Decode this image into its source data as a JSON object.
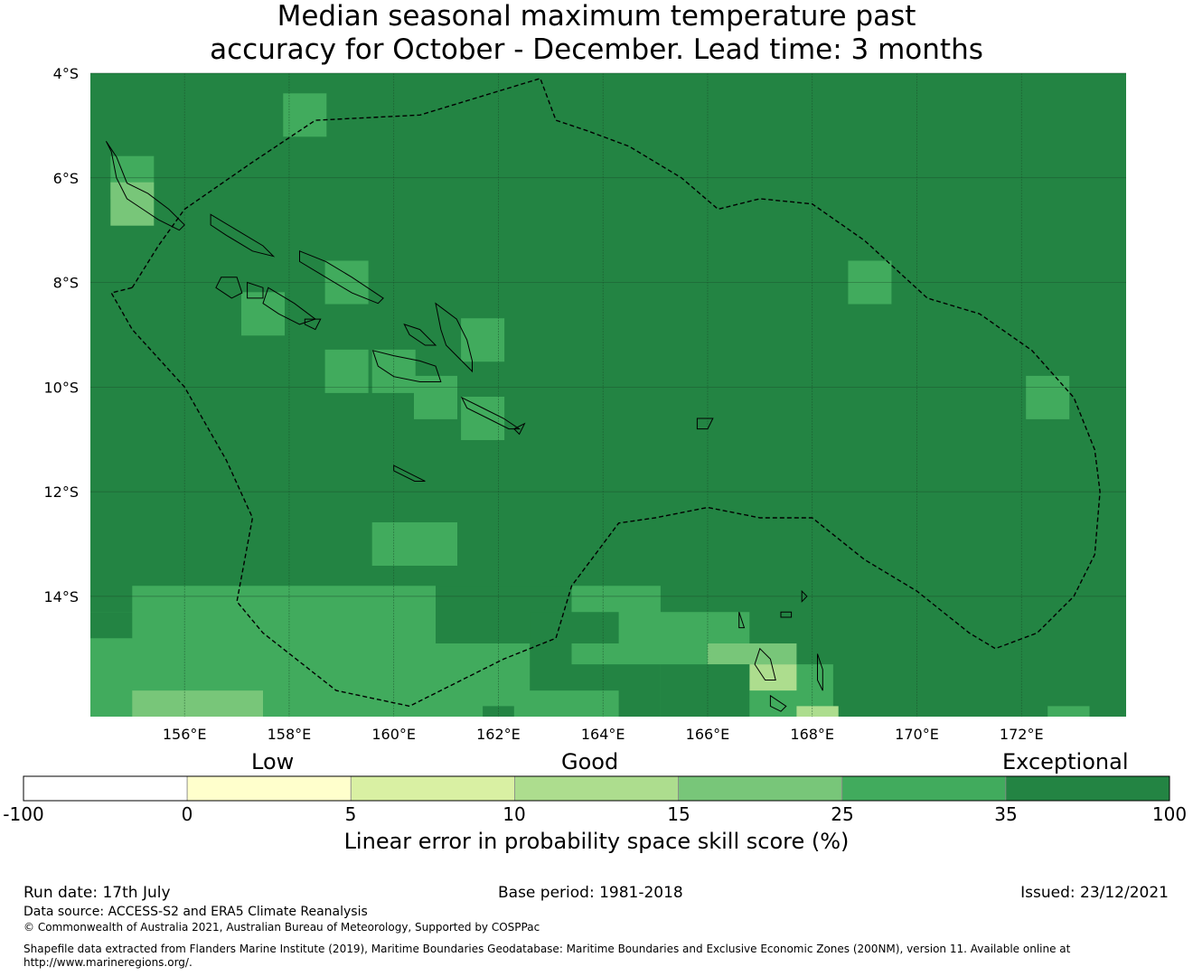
{
  "title": {
    "line1": "Median seasonal maximum temperature past",
    "line2": "accuracy for October - December. Lead time: 3 months"
  },
  "map": {
    "lon_range": [
      154.2,
      174.0
    ],
    "lat_range": [
      -16.3,
      -4.0
    ],
    "lat_ticks": [
      {
        "value": -4,
        "label": "4°S"
      },
      {
        "value": -6,
        "label": "6°S"
      },
      {
        "value": -8,
        "label": "8°S"
      },
      {
        "value": -10,
        "label": "10°S"
      },
      {
        "value": -12,
        "label": "12°S"
      },
      {
        "value": -14,
        "label": "14°S"
      }
    ],
    "lon_ticks": [
      {
        "value": 156,
        "label": "156°E"
      },
      {
        "value": 158,
        "label": "158°E"
      },
      {
        "value": 160,
        "label": "160°E"
      },
      {
        "value": 162,
        "label": "162°E"
      },
      {
        "value": 164,
        "label": "164°E"
      },
      {
        "value": 166,
        "label": "166°E"
      },
      {
        "value": 168,
        "label": "168°E"
      },
      {
        "value": 170,
        "label": "170°E"
      },
      {
        "value": 172,
        "label": "172°E"
      }
    ],
    "grid": true,
    "background_class": 6,
    "cell_size_deg": 0.83,
    "cells": [
      {
        "lon": 158.3,
        "lat": -4.8,
        "class": 5
      },
      {
        "lon": 155.0,
        "lat": -6.0,
        "class": 5
      },
      {
        "lon": 155.0,
        "lat": -6.5,
        "class": 4
      },
      {
        "lon": 159.1,
        "lat": -8.0,
        "class": 5
      },
      {
        "lon": 157.5,
        "lat": -8.6,
        "class": 5
      },
      {
        "lon": 161.7,
        "lat": -9.1,
        "class": 5
      },
      {
        "lon": 159.1,
        "lat": -9.7,
        "class": 5
      },
      {
        "lon": 160.0,
        "lat": -9.7,
        "class": 5
      },
      {
        "lon": 160.8,
        "lat": -10.2,
        "class": 5
      },
      {
        "lon": 161.7,
        "lat": -10.6,
        "class": 5
      },
      {
        "lon": 169.1,
        "lat": -8.0,
        "class": 5
      },
      {
        "lon": 172.5,
        "lat": -10.2,
        "class": 5
      },
      {
        "lon": 160.0,
        "lat": -13.0,
        "class": 5
      },
      {
        "lon": 160.8,
        "lat": -13.0,
        "class": 5
      }
    ],
    "regions": [
      {
        "class": 5,
        "polygon": [
          [
            155.0,
            -13.8
          ],
          [
            155.0,
            -14.3
          ],
          [
            154.2,
            -14.3
          ],
          [
            154.2,
            -16.3
          ],
          [
            168.4,
            -16.3
          ],
          [
            168.4,
            -15.3
          ],
          [
            166.8,
            -15.3
          ],
          [
            166.8,
            -14.3
          ],
          [
            165.1,
            -14.3
          ],
          [
            165.1,
            -13.8
          ],
          [
            163.4,
            -13.8
          ],
          [
            163.4,
            -14.3
          ],
          [
            164.3,
            -14.3
          ],
          [
            164.3,
            -14.9
          ],
          [
            163.4,
            -14.9
          ],
          [
            163.4,
            -15.3
          ],
          [
            165.1,
            -15.3
          ],
          [
            165.1,
            -16.3
          ],
          [
            164.3,
            -16.3
          ],
          [
            164.3,
            -15.8
          ],
          [
            162.6,
            -15.8
          ],
          [
            162.6,
            -14.9
          ],
          [
            160.8,
            -14.9
          ],
          [
            160.8,
            -13.8
          ],
          [
            160.0,
            -13.8
          ],
          [
            155.8,
            -13.8
          ]
        ]
      },
      {
        "class": 6,
        "polygon": [
          [
            160.8,
            -13.8
          ],
          [
            160.8,
            -14.9
          ],
          [
            162.6,
            -14.9
          ],
          [
            162.6,
            -14.3
          ],
          [
            163.4,
            -14.3
          ],
          [
            163.4,
            -13.8
          ],
          [
            165.1,
            -13.8
          ],
          [
            165.1,
            -13.8
          ],
          [
            160.8,
            -13.8
          ]
        ]
      },
      {
        "class": 4,
        "polygon": [
          [
            155.0,
            -15.8
          ],
          [
            157.5,
            -15.8
          ],
          [
            157.5,
            -16.3
          ],
          [
            155.0,
            -16.3
          ]
        ]
      },
      {
        "class": 4,
        "polygon": [
          [
            166.0,
            -14.9
          ],
          [
            167.7,
            -14.9
          ],
          [
            167.7,
            -15.3
          ],
          [
            166.0,
            -15.3
          ]
        ]
      },
      {
        "class": 3,
        "polygon": [
          [
            166.8,
            -15.3
          ],
          [
            167.7,
            -15.3
          ],
          [
            167.7,
            -15.8
          ],
          [
            166.8,
            -15.8
          ]
        ]
      },
      {
        "class": 3,
        "polygon": [
          [
            167.7,
            -16.1
          ],
          [
            168.5,
            -16.1
          ],
          [
            168.5,
            -16.3
          ],
          [
            167.7,
            -16.3
          ]
        ]
      },
      {
        "class": 6,
        "polygon": [
          [
            154.2,
            -14.3
          ],
          [
            155.0,
            -14.3
          ],
          [
            155.0,
            -14.8
          ],
          [
            154.2,
            -14.8
          ]
        ]
      },
      {
        "class": 6,
        "polygon": [
          [
            165.1,
            -15.3
          ],
          [
            166.8,
            -15.3
          ],
          [
            166.8,
            -16.3
          ],
          [
            165.1,
            -16.3
          ]
        ]
      },
      {
        "class": 6,
        "polygon": [
          [
            161.7,
            -16.1
          ],
          [
            162.3,
            -16.1
          ],
          [
            162.3,
            -16.3
          ],
          [
            161.7,
            -16.3
          ]
        ]
      },
      {
        "class": 5,
        "polygon": [
          [
            172.5,
            -16.1
          ],
          [
            173.3,
            -16.1
          ],
          [
            173.3,
            -16.3
          ],
          [
            172.5,
            -16.3
          ]
        ]
      }
    ],
    "eez_boundary": [
      [
        155.0,
        -8.1
      ],
      [
        155.5,
        -7.3
      ],
      [
        156.0,
        -6.6
      ],
      [
        157.3,
        -5.7
      ],
      [
        158.5,
        -4.9
      ],
      [
        160.5,
        -4.8
      ],
      [
        162.8,
        -4.1
      ],
      [
        163.1,
        -4.9
      ],
      [
        163.7,
        -5.1
      ],
      [
        164.5,
        -5.4
      ],
      [
        165.5,
        -6.0
      ],
      [
        166.2,
        -6.6
      ],
      [
        167.0,
        -6.4
      ],
      [
        168.0,
        -6.5
      ],
      [
        169.0,
        -7.2
      ],
      [
        170.2,
        -8.3
      ],
      [
        171.2,
        -8.6
      ],
      [
        172.2,
        -9.3
      ],
      [
        173.0,
        -10.2
      ],
      [
        173.4,
        -11.2
      ],
      [
        173.5,
        -12.0
      ],
      [
        173.4,
        -13.2
      ],
      [
        173.0,
        -14.0
      ],
      [
        172.3,
        -14.7
      ],
      [
        171.5,
        -15.0
      ],
      [
        171.0,
        -14.7
      ],
      [
        170.0,
        -13.9
      ],
      [
        169.0,
        -13.3
      ],
      [
        168.0,
        -12.5
      ],
      [
        167.0,
        -12.5
      ],
      [
        166.0,
        -12.3
      ],
      [
        165.0,
        -12.5
      ],
      [
        164.3,
        -12.6
      ],
      [
        163.4,
        -13.8
      ],
      [
        163.1,
        -14.8
      ],
      [
        162.1,
        -15.2
      ],
      [
        160.3,
        -16.1
      ],
      [
        158.9,
        -15.8
      ],
      [
        157.5,
        -14.7
      ],
      [
        157.0,
        -14.1
      ],
      [
        157.3,
        -12.5
      ],
      [
        156.8,
        -11.4
      ],
      [
        156.0,
        -10.0
      ],
      [
        155.0,
        -8.9
      ],
      [
        154.6,
        -8.2
      ],
      [
        155.0,
        -8.1
      ]
    ],
    "land": [
      [
        [
          154.5,
          -5.3
        ],
        [
          154.7,
          -5.6
        ],
        [
          154.9,
          -6.1
        ],
        [
          155.3,
          -6.3
        ],
        [
          155.7,
          -6.6
        ],
        [
          156.0,
          -6.9
        ],
        [
          155.9,
          -7.0
        ],
        [
          155.5,
          -6.8
        ],
        [
          155.2,
          -6.6
        ],
        [
          154.9,
          -6.4
        ],
        [
          154.7,
          -6.0
        ],
        [
          154.6,
          -5.5
        ]
      ],
      [
        [
          156.5,
          -6.7
        ],
        [
          157.0,
          -7.0
        ],
        [
          157.5,
          -7.3
        ],
        [
          157.7,
          -7.5
        ],
        [
          157.3,
          -7.4
        ],
        [
          156.8,
          -7.1
        ],
        [
          156.5,
          -6.9
        ]
      ],
      [
        [
          156.7,
          -7.9
        ],
        [
          157.0,
          -7.9
        ],
        [
          157.1,
          -8.2
        ],
        [
          156.9,
          -8.3
        ],
        [
          156.6,
          -8.1
        ]
      ],
      [
        [
          157.2,
          -8.0
        ],
        [
          157.5,
          -8.1
        ],
        [
          157.5,
          -8.3
        ],
        [
          157.2,
          -8.3
        ]
      ],
      [
        [
          157.6,
          -8.1
        ],
        [
          158.1,
          -8.4
        ],
        [
          158.5,
          -8.7
        ],
        [
          158.2,
          -8.8
        ],
        [
          157.8,
          -8.6
        ],
        [
          157.5,
          -8.4
        ]
      ],
      [
        [
          158.3,
          -8.7
        ],
        [
          158.6,
          -8.7
        ],
        [
          158.5,
          -8.9
        ],
        [
          158.3,
          -8.8
        ]
      ],
      [
        [
          158.2,
          -7.4
        ],
        [
          158.7,
          -7.6
        ],
        [
          159.2,
          -7.9
        ],
        [
          159.8,
          -8.3
        ],
        [
          159.7,
          -8.4
        ],
        [
          159.2,
          -8.2
        ],
        [
          158.7,
          -7.9
        ],
        [
          158.2,
          -7.6
        ]
      ],
      [
        [
          160.2,
          -8.8
        ],
        [
          160.5,
          -8.9
        ],
        [
          160.8,
          -9.2
        ],
        [
          160.6,
          -9.2
        ],
        [
          160.3,
          -9.0
        ]
      ],
      [
        [
          159.6,
          -9.3
        ],
        [
          160.0,
          -9.4
        ],
        [
          160.5,
          -9.5
        ],
        [
          160.8,
          -9.6
        ],
        [
          160.9,
          -9.9
        ],
        [
          160.5,
          -9.9
        ],
        [
          160.0,
          -9.8
        ],
        [
          159.7,
          -9.6
        ]
      ],
      [
        [
          160.8,
          -8.4
        ],
        [
          161.2,
          -8.7
        ],
        [
          161.4,
          -9.1
        ],
        [
          161.5,
          -9.5
        ],
        [
          161.5,
          -9.7
        ],
        [
          161.3,
          -9.5
        ],
        [
          161.0,
          -9.2
        ],
        [
          160.9,
          -8.9
        ]
      ],
      [
        [
          161.3,
          -10.2
        ],
        [
          161.7,
          -10.4
        ],
        [
          162.1,
          -10.6
        ],
        [
          162.4,
          -10.8
        ],
        [
          162.2,
          -10.8
        ],
        [
          161.8,
          -10.6
        ],
        [
          161.4,
          -10.4
        ]
      ],
      [
        [
          162.3,
          -10.8
        ],
        [
          162.5,
          -10.7
        ],
        [
          162.4,
          -10.9
        ]
      ],
      [
        [
          160.0,
          -11.5
        ],
        [
          160.4,
          -11.7
        ],
        [
          160.6,
          -11.8
        ],
        [
          160.4,
          -11.8
        ],
        [
          160.0,
          -11.6
        ]
      ],
      [
        [
          165.8,
          -10.6
        ],
        [
          166.1,
          -10.6
        ],
        [
          166.0,
          -10.8
        ],
        [
          165.8,
          -10.8
        ]
      ],
      [
        [
          167.0,
          -15.0
        ],
        [
          167.2,
          -15.2
        ],
        [
          167.3,
          -15.6
        ],
        [
          167.1,
          -15.6
        ],
        [
          166.9,
          -15.3
        ]
      ],
      [
        [
          168.1,
          -15.1
        ],
        [
          168.2,
          -15.4
        ],
        [
          168.2,
          -15.8
        ],
        [
          168.1,
          -15.6
        ]
      ],
      [
        [
          167.2,
          -15.9
        ],
        [
          167.5,
          -16.1
        ],
        [
          167.4,
          -16.2
        ],
        [
          167.2,
          -16.1
        ]
      ],
      [
        [
          166.6,
          -14.3
        ],
        [
          166.7,
          -14.6
        ],
        [
          166.6,
          -14.6
        ]
      ],
      [
        [
          167.4,
          -14.3
        ],
        [
          167.6,
          -14.3
        ],
        [
          167.6,
          -14.4
        ],
        [
          167.4,
          -14.4
        ]
      ],
      [
        [
          167.8,
          -13.9
        ],
        [
          167.9,
          -14.0
        ],
        [
          167.8,
          -14.1
        ]
      ]
    ]
  },
  "colorbar": {
    "colors": [
      "#ffffff",
      "#ffffcc",
      "#d9f0a3",
      "#addd8e",
      "#78c679",
      "#41ab5d",
      "#238443"
    ],
    "ticks": [
      "-100",
      "0",
      "5",
      "10",
      "15",
      "25",
      "35",
      "100"
    ],
    "categories": [
      "Low",
      "Good",
      "Exceptional"
    ],
    "label": "Linear error in probability space skill score (%)"
  },
  "footer": {
    "run_date": "Run date: 17th July",
    "base_period": "Base period: 1981-2018",
    "issued": "Issued: 23/12/2021",
    "data_source": "Data source: ACCESS-S2 and ERA5 Climate Reanalysis",
    "copyright": "© Commonwealth of Australia 2021, Australian Bureau of Meteorology, Supported by COSPPac",
    "shapefile": "Shapefile data extracted from Flanders Marine Institute (2019), Maritime Boundaries Geodatabase: Maritime Boundaries and Exclusive Economic Zones (200NM), version 11. Available online at http://www.marineregions.org/."
  }
}
